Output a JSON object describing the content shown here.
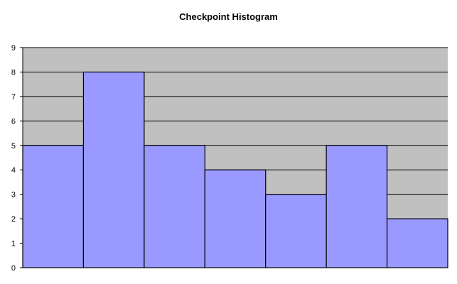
{
  "chart_data": {
    "type": "bar",
    "title": "Checkpoint Histogram",
    "xlabel": "",
    "ylabel": "",
    "categories": [
      "",
      "",
      "",
      "",
      "",
      "",
      ""
    ],
    "values": [
      5,
      8,
      5,
      4,
      3,
      5,
      2
    ],
    "ylim": [
      0,
      9
    ],
    "yticks": [
      0,
      1,
      2,
      3,
      4,
      5,
      6,
      7,
      8,
      9
    ],
    "grid": true,
    "legend": "none",
    "colors": {
      "bar_fill": "#9999ff",
      "bar_stroke": "#000000",
      "plot_background": "#c0c0c0",
      "gridline": "#000000"
    }
  }
}
